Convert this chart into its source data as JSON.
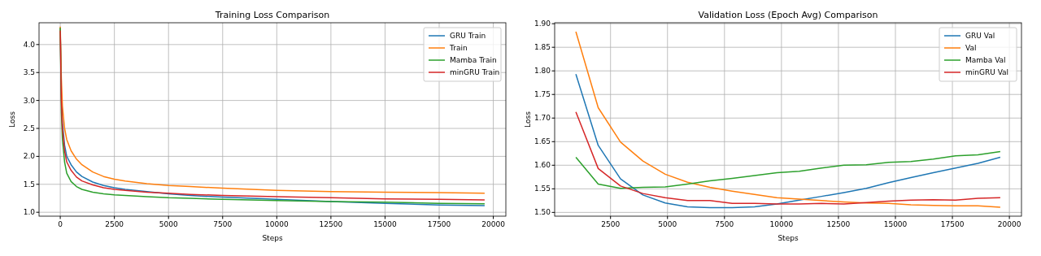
{
  "chart_data": [
    {
      "type": "line",
      "title": "Training Loss Comparison",
      "xlabel": "Steps",
      "ylabel": "Loss",
      "x": [
        0,
        50,
        100,
        200,
        300,
        500,
        750,
        1000,
        1500,
        2000,
        2500,
        3000,
        4000,
        5000,
        6000,
        7500,
        10000,
        12500,
        15000,
        17500,
        19600
      ],
      "xlim": [
        -980,
        20580
      ],
      "ylim": [
        0.93,
        4.39
      ],
      "xticks": [
        0,
        2500,
        5000,
        7500,
        10000,
        12500,
        15000,
        17500,
        20000
      ],
      "yticks": [
        {
          "value": 1,
          "label": "1.0"
        },
        1.5,
        {
          "value": 2,
          "label": "2.0"
        },
        2.5,
        {
          "value": 3,
          "label": "3.0"
        },
        3.5,
        {
          "value": 4,
          "label": "4.0"
        }
      ],
      "grid": true,
      "legend": "top right",
      "series": [
        {
          "name": "GRU Train",
          "color": "#1f77b4",
          "values": [
            4.3,
            3.1,
            2.6,
            2.2,
            2.0,
            1.85,
            1.72,
            1.64,
            1.54,
            1.48,
            1.44,
            1.41,
            1.37,
            1.33,
            1.3,
            1.27,
            1.23,
            1.19,
            1.16,
            1.13,
            1.12
          ]
        },
        {
          "name": "Train",
          "color": "#ff7f0e",
          "values": [
            4.32,
            3.4,
            2.9,
            2.5,
            2.3,
            2.1,
            1.95,
            1.85,
            1.72,
            1.64,
            1.59,
            1.56,
            1.51,
            1.48,
            1.46,
            1.43,
            1.39,
            1.37,
            1.36,
            1.35,
            1.34
          ]
        },
        {
          "name": "Mamba Train",
          "color": "#2ca02c",
          "values": [
            4.3,
            2.8,
            2.3,
            1.9,
            1.7,
            1.55,
            1.46,
            1.41,
            1.36,
            1.33,
            1.31,
            1.3,
            1.28,
            1.26,
            1.25,
            1.23,
            1.21,
            1.19,
            1.18,
            1.16,
            1.15
          ]
        },
        {
          "name": "minGRU Train",
          "color": "#d62728",
          "values": [
            4.25,
            3.0,
            2.5,
            2.1,
            1.9,
            1.75,
            1.63,
            1.56,
            1.49,
            1.44,
            1.41,
            1.39,
            1.36,
            1.34,
            1.32,
            1.3,
            1.28,
            1.26,
            1.24,
            1.23,
            1.22
          ]
        }
      ]
    },
    {
      "type": "line",
      "title": "Validation Loss (Epoch Avg) Comparison",
      "xlabel": "Steps",
      "ylabel": "Loss",
      "x": [
        980,
        1960,
        2940,
        3920,
        4900,
        5880,
        6860,
        7840,
        8820,
        9800,
        10780,
        11760,
        12740,
        13720,
        14700,
        15680,
        16660,
        17640,
        18620,
        19600
      ],
      "xlim": [
        49,
        20531
      ],
      "ylim": [
        1.492,
        1.902
      ],
      "xticks": [
        2500,
        5000,
        7500,
        10000,
        12500,
        15000,
        17500,
        20000
      ],
      "yticks": [
        {
          "value": 1.5,
          "label": "1.50"
        },
        1.55,
        {
          "value": 1.6,
          "label": "1.60"
        },
        1.65,
        {
          "value": 1.7,
          "label": "1.70"
        },
        1.75,
        {
          "value": 1.8,
          "label": "1.80"
        },
        1.85,
        {
          "value": 1.9,
          "label": "1.90"
        }
      ],
      "grid": true,
      "legend": "top right",
      "series": [
        {
          "name": "GRU Val",
          "color": "#1f77b4",
          "values": [
            1.793,
            1.642,
            1.571,
            1.537,
            1.52,
            1.512,
            1.51,
            1.51,
            1.512,
            1.518,
            1.526,
            1.534,
            1.542,
            1.551,
            1.563,
            1.574,
            1.584,
            1.594,
            1.604,
            1.617
          ]
        },
        {
          "name": "Val",
          "color": "#ff7f0e",
          "values": [
            1.883,
            1.722,
            1.649,
            1.609,
            1.581,
            1.564,
            1.553,
            1.545,
            1.538,
            1.531,
            1.528,
            1.525,
            1.522,
            1.52,
            1.519,
            1.516,
            1.515,
            1.514,
            1.514,
            1.511
          ]
        },
        {
          "name": "Mamba Val",
          "color": "#2ca02c",
          "values": [
            1.617,
            1.56,
            1.551,
            1.553,
            1.554,
            1.56,
            1.567,
            1.572,
            1.578,
            1.584,
            1.587,
            1.594,
            1.6,
            1.601,
            1.606,
            1.608,
            1.613,
            1.62,
            1.622,
            1.629
          ]
        },
        {
          "name": "minGRU Val",
          "color": "#d62728",
          "values": [
            1.713,
            1.593,
            1.556,
            1.54,
            1.531,
            1.525,
            1.525,
            1.519,
            1.519,
            1.518,
            1.518,
            1.519,
            1.518,
            1.521,
            1.524,
            1.526,
            1.527,
            1.526,
            1.53,
            1.531
          ]
        }
      ]
    }
  ]
}
